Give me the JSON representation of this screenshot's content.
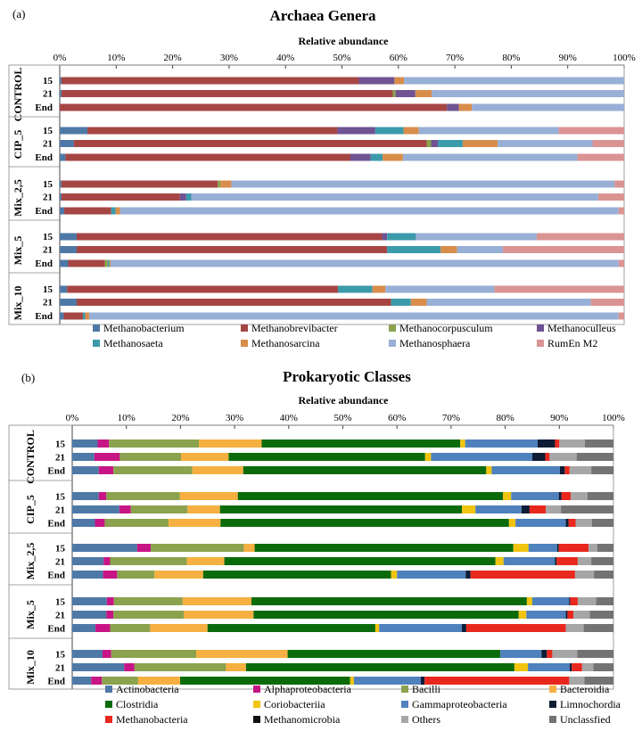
{
  "chart_data": [
    {
      "panel": "(a)",
      "type": "bar",
      "orientation": "horizontal",
      "stacked": true,
      "title": "Archaea Genera",
      "xlabel": "Relative abundance",
      "xlim": [
        0,
        100
      ],
      "ticks": [
        "0%",
        "10%",
        "20%",
        "30%",
        "40%",
        "50%",
        "60%",
        "70%",
        "80%",
        "90%",
        "100%"
      ],
      "legend": [
        {
          "name": "Methanobacterium",
          "color": "#4E79A7"
        },
        {
          "name": "Methanobrevibacter",
          "color": "#A64644"
        },
        {
          "name": "Methanocorpusculum",
          "color": "#8BA24E"
        },
        {
          "name": "Methanoculleus",
          "color": "#6F5392"
        },
        {
          "name": "Methanosaeta",
          "color": "#3C9BAA"
        },
        {
          "name": "Methanosarcina",
          "color": "#D98D4B"
        },
        {
          "name": "Methanosphaera",
          "color": "#98AFD6"
        },
        {
          "name": "RumEn M2",
          "color": "#D99493"
        }
      ],
      "groups": [
        {
          "name": "CONTROL",
          "rows": [
            {
              "label": "15",
              "values": [
                0.3,
                52.7,
                0,
                6.3,
                0,
                1.7,
                39.0,
                0
              ]
            },
            {
              "label": "21",
              "values": [
                0.3,
                58.7,
                0.5,
                3.5,
                0,
                2.9,
                34.1,
                0
              ]
            },
            {
              "label": "End",
              "values": [
                0,
                68.6,
                0,
                2.1,
                0,
                2.3,
                27.0,
                0
              ]
            }
          ]
        },
        {
          "name": "CIP_5",
          "rows": [
            {
              "label": "15",
              "values": [
                4.9,
                44.3,
                0,
                6.7,
                5.0,
                2.7,
                24.8,
                11.6
              ]
            },
            {
              "label": "21",
              "values": [
                2.5,
                62.5,
                0.8,
                1.2,
                4.4,
                6.2,
                16.8,
                5.6
              ]
            },
            {
              "label": "End",
              "values": [
                1.0,
                50.5,
                0,
                3.6,
                2.1,
                3.6,
                30.9,
                8.3
              ]
            }
          ]
        },
        {
          "name": "Mix_2,5",
          "rows": [
            {
              "label": "15",
              "values": [
                0.3,
                27.7,
                0.5,
                0,
                0,
                1.9,
                67.9,
                1.7
              ]
            },
            {
              "label": "21",
              "values": [
                0.3,
                21.0,
                0,
                1.1,
                0.9,
                0,
                72.1,
                4.6
              ]
            },
            {
              "label": "End",
              "values": [
                0.8,
                8.3,
                0,
                0,
                0.8,
                0.8,
                88.3,
                1.0
              ]
            }
          ]
        },
        {
          "name": "Mix_5",
          "rows": [
            {
              "label": "15",
              "values": [
                3.0,
                54.1,
                0,
                0.9,
                5.1,
                0,
                21.4,
                15.5
              ]
            },
            {
              "label": "21",
              "values": [
                3.0,
                55.0,
                0,
                0,
                9.5,
                2.9,
                8.1,
                21.5
              ]
            },
            {
              "label": "End",
              "values": [
                1.5,
                6.5,
                0.5,
                0,
                0.3,
                0.2,
                90.0,
                1.0
              ]
            }
          ]
        },
        {
          "name": "Mix_10",
          "rows": [
            {
              "label": "15",
              "values": [
                1.3,
                48.0,
                0,
                0,
                6.1,
                2.3,
                19.3,
                23.0
              ]
            },
            {
              "label": "21",
              "values": [
                3.0,
                55.7,
                0,
                0,
                3.5,
                2.8,
                29.1,
                5.9
              ]
            },
            {
              "label": "End",
              "values": [
                0.7,
                3.4,
                0,
                0,
                0.4,
                0.7,
                93.8,
                1.0
              ]
            }
          ]
        }
      ]
    },
    {
      "panel": "(b)",
      "type": "bar",
      "orientation": "horizontal",
      "stacked": true,
      "title": "Prokaryotic Classes",
      "xlabel": "Relative abundance",
      "xlim": [
        0,
        100
      ],
      "ticks": [
        "0%",
        "10%",
        "20%",
        "30%",
        "40%",
        "50%",
        "60%",
        "70%",
        "80%",
        "90%",
        "100%"
      ],
      "legend": [
        {
          "name": "Actinobacteria",
          "color": "#4E79A7"
        },
        {
          "name": "Alphaproteobacteria",
          "color": "#C71585"
        },
        {
          "name": "Bacilli",
          "color": "#8BA24E"
        },
        {
          "name": "Bacteroidia",
          "color": "#F5B041"
        },
        {
          "name": "Clostridia",
          "color": "#0B6B0B"
        },
        {
          "name": "Coriobacteriia",
          "color": "#F1C40F"
        },
        {
          "name": "Gammaproteobacteria",
          "color": "#4F81BD"
        },
        {
          "name": "Limnochordia",
          "color": "#0E1C36"
        },
        {
          "name": "Methanobacteria",
          "color": "#E8281E"
        },
        {
          "name": "Methanomicrobia",
          "color": "#111111"
        },
        {
          "name": "Others",
          "color": "#A6A6A6"
        },
        {
          "name": "Unclassfied",
          "color": "#737373"
        }
      ],
      "groups": [
        {
          "name": "CONTROL",
          "rows": [
            {
              "label": "15",
              "values": [
                4.7,
                2.1,
                16.6,
                11.6,
                36.7,
                0.9,
                13.4,
                3.2,
                0.8,
                0,
                4.7,
                5.3
              ]
            },
            {
              "label": "21",
              "values": [
                4.1,
                4.7,
                11.3,
                8.8,
                36.3,
                1.1,
                18.7,
                2.4,
                0.8,
                0,
                5.0,
                6.8
              ]
            },
            {
              "label": "End",
              "values": [
                4.9,
                2.7,
                14.6,
                9.4,
                44.9,
                1.0,
                12.6,
                0.9,
                0.9,
                0,
                4.0,
                4.1
              ]
            }
          ]
        },
        {
          "name": "CIP_5",
          "rows": [
            {
              "label": "15",
              "values": [
                4.9,
                1.4,
                13.6,
                10.7,
                49.0,
                1.5,
                8.8,
                0.5,
                1.7,
                0,
                3.1,
                4.8
              ]
            },
            {
              "label": "21",
              "values": [
                8.7,
                2.1,
                10.5,
                6.0,
                44.7,
                2.5,
                8.5,
                1.5,
                3.0,
                0,
                2.8,
                9.7
              ]
            },
            {
              "label": "End",
              "values": [
                4.2,
                1.8,
                11.8,
                9.6,
                53.3,
                1.2,
                9.3,
                0.5,
                1.3,
                0,
                3.0,
                4.0
              ]
            }
          ]
        },
        {
          "name": "Mix_2,5",
          "rows": [
            {
              "label": "15",
              "values": [
                12.0,
                2.5,
                17.2,
                2.0,
                47.8,
                2.8,
                5.3,
                0.3,
                5.5,
                0,
                1.6,
                3.0
              ]
            },
            {
              "label": "21",
              "values": [
                5.8,
                1.2,
                14.2,
                6.9,
                50.1,
                1.5,
                9.5,
                0.3,
                3.9,
                0,
                2.5,
                4.1
              ]
            },
            {
              "label": "End",
              "values": [
                5.7,
                2.6,
                6.9,
                9.0,
                34.7,
                1.1,
                12.7,
                0.9,
                19.3,
                0,
                3.5,
                3.6
              ]
            }
          ]
        },
        {
          "name": "Mix_5",
          "rows": [
            {
              "label": "15",
              "values": [
                6.4,
                1.3,
                12.7,
                12.7,
                50.9,
                1.0,
                6.8,
                0.2,
                1.4,
                0,
                3.4,
                3.2
              ]
            },
            {
              "label": "21",
              "values": [
                6.3,
                1.3,
                13.0,
                12.9,
                49.0,
                1.4,
                7.3,
                0.3,
                1.1,
                0,
                3.0,
                4.4
              ]
            },
            {
              "label": "End",
              "values": [
                4.3,
                2.7,
                7.4,
                10.6,
                31.0,
                0.7,
                15.3,
                0.8,
                18.4,
                0,
                3.3,
                5.5
              ]
            }
          ]
        },
        {
          "name": "Mix_10",
          "rows": [
            {
              "label": "15",
              "values": [
                5.6,
                1.6,
                15.7,
                16.9,
                39.3,
                0,
                7.6,
                1.0,
                1.0,
                0,
                4.6,
                6.7
              ]
            },
            {
              "label": "21",
              "values": [
                9.6,
                1.9,
                16.9,
                3.7,
                49.6,
                2.5,
                7.7,
                0.4,
                1.9,
                0,
                2.1,
                3.7
              ]
            },
            {
              "label": "End",
              "values": [
                3.5,
                2.0,
                6.7,
                7.8,
                31.5,
                0.7,
                12.4,
                0.7,
                26.8,
                0,
                2.8,
                5.4
              ]
            }
          ]
        }
      ]
    }
  ]
}
